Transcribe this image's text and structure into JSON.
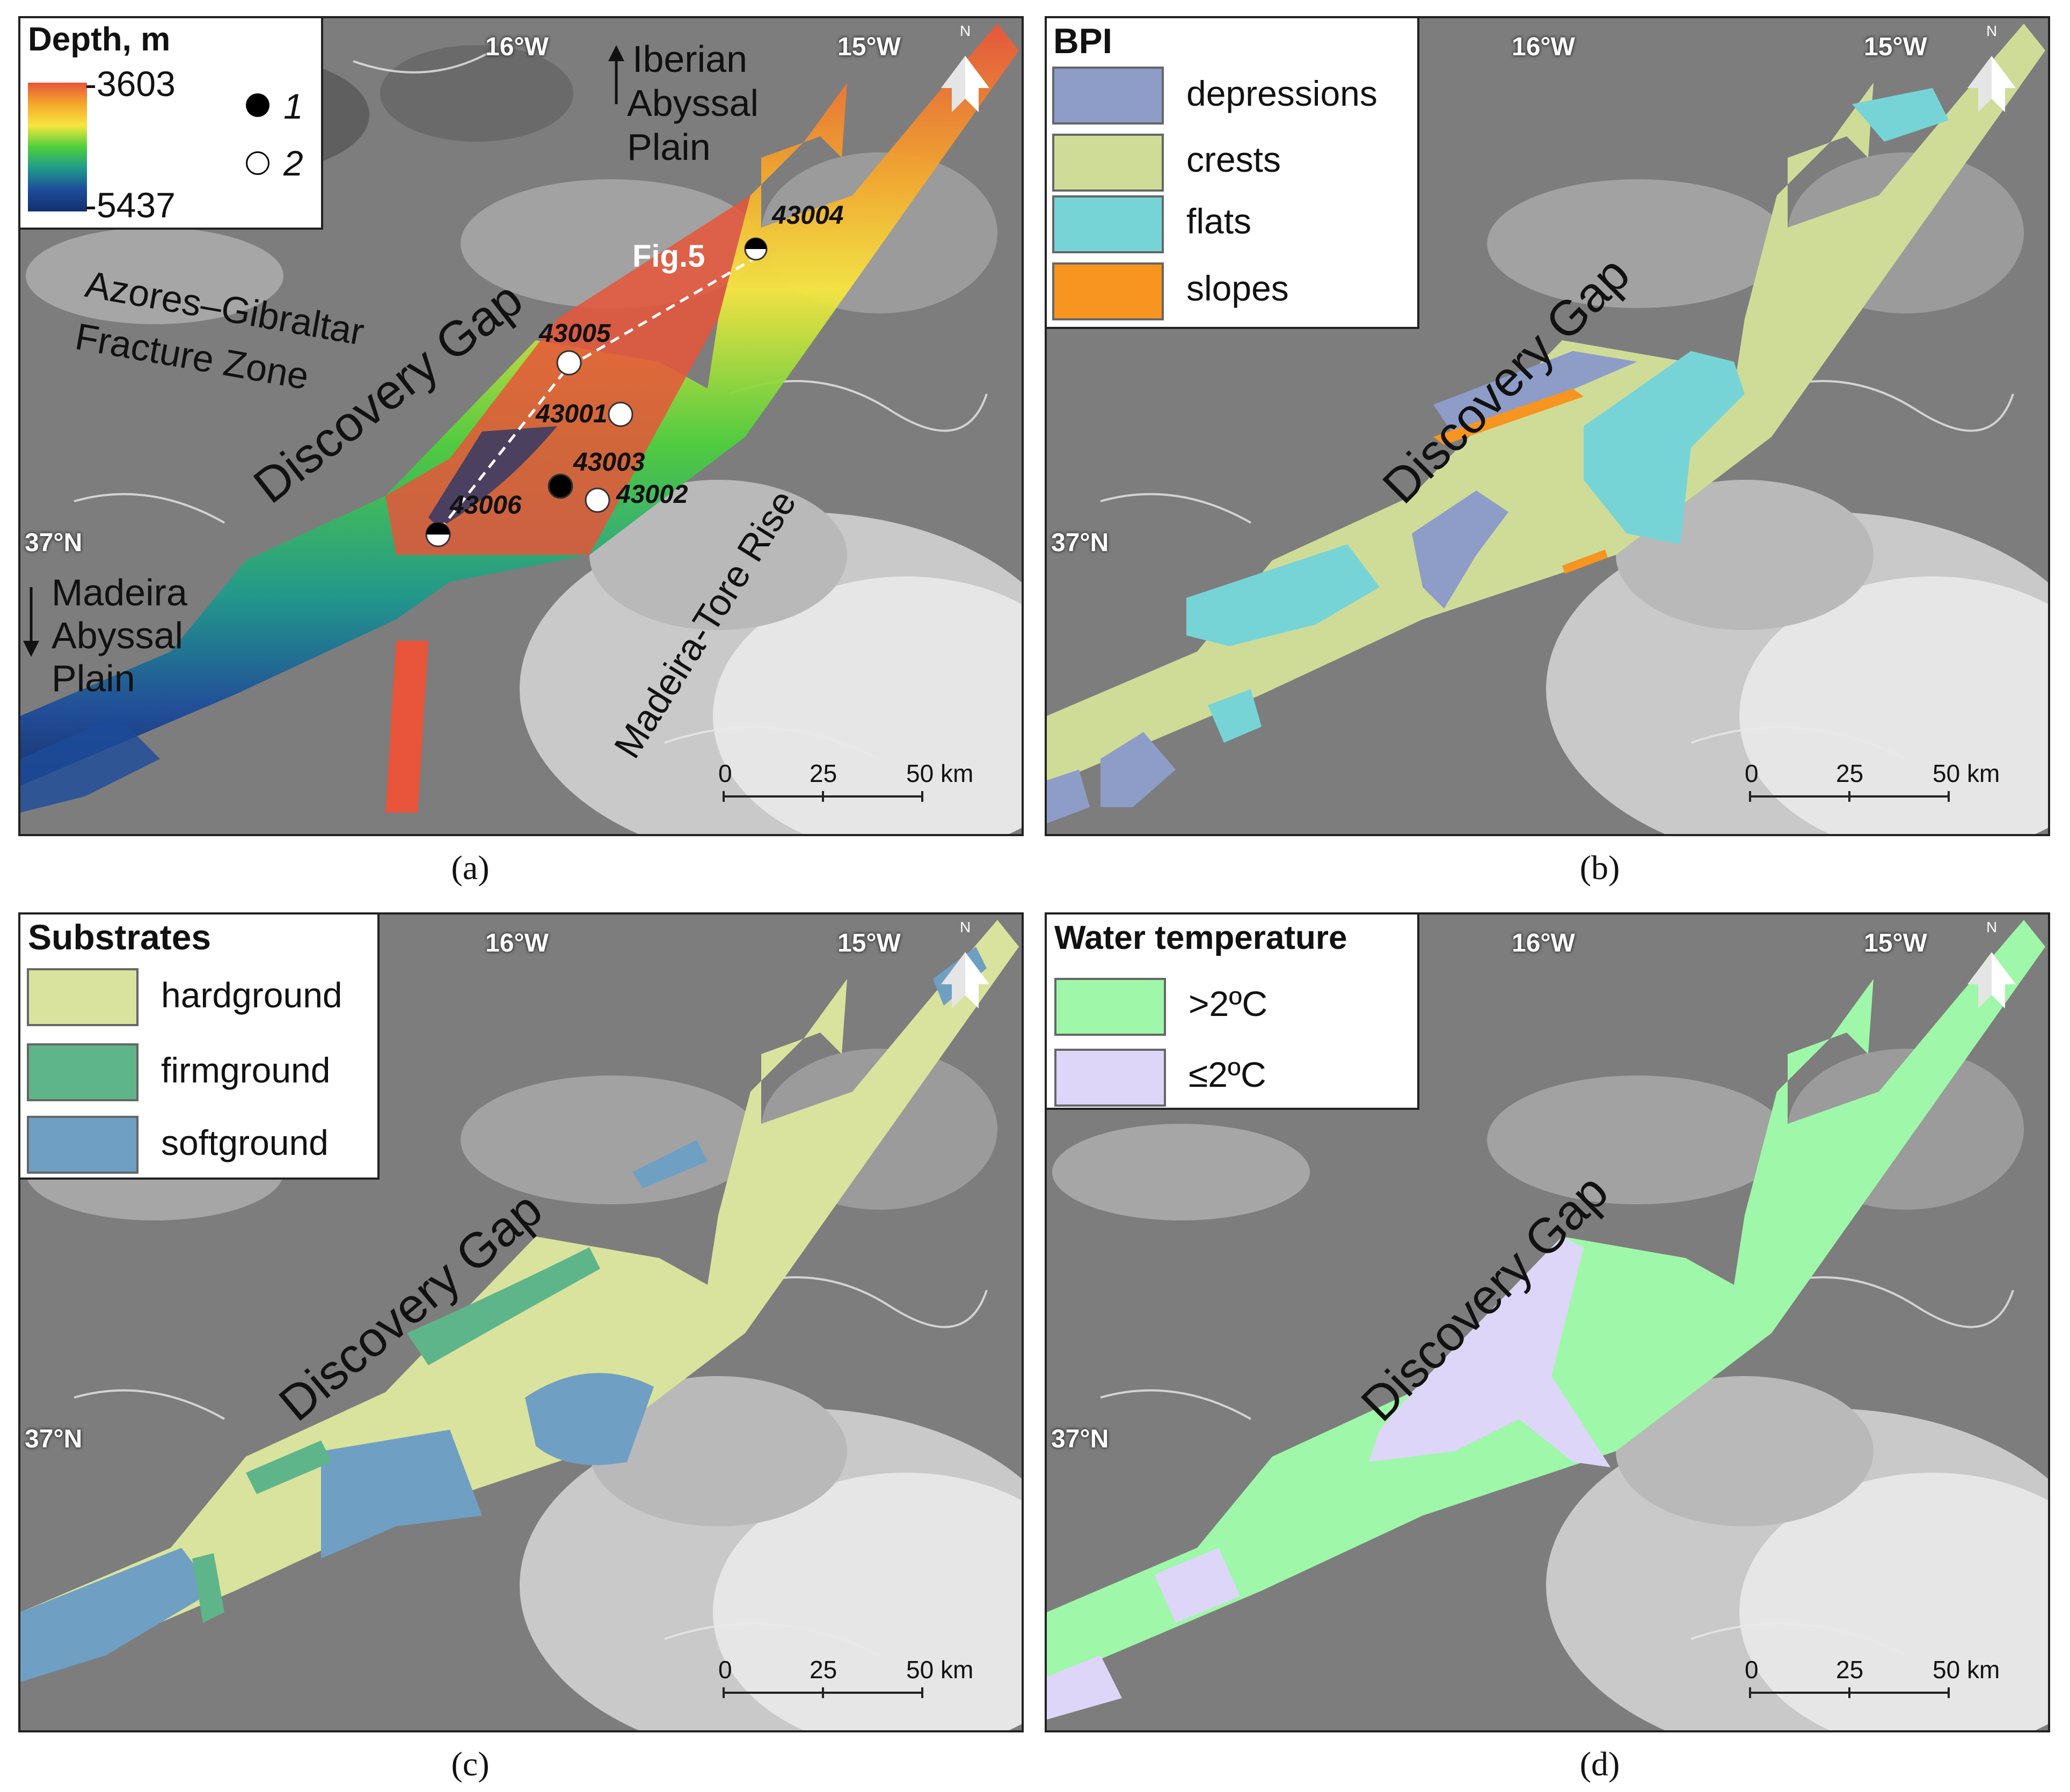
{
  "panels": {
    "a": {
      "caption": "(a)",
      "legend_title": "Depth, m",
      "depth_max": "-3603",
      "depth_min": "-5437",
      "marker_1": "1",
      "marker_2": "2",
      "gradient_colors": [
        "#e8553a",
        "#f4a82c",
        "#f6e640",
        "#4fcf3c",
        "#1e9a8c",
        "#1d4b9a",
        "#12306e"
      ],
      "labels": {
        "iberian": [
          "Iberian",
          "Abyssal",
          "Plain"
        ],
        "madeira": [
          "Madeira",
          "Abyssal",
          "Plain"
        ],
        "azores": [
          "Azores–Gibraltar",
          "Fracture Zone"
        ],
        "discovery": "Discovery Gap",
        "tore": "Madeira-Tore Rise",
        "fig5": "Fig.5"
      },
      "stations": [
        "43004",
        "43005",
        "43001",
        "43003",
        "43002",
        "43006"
      ]
    },
    "b": {
      "caption": "(b)",
      "legend_title": "BPI",
      "items": [
        {
          "label": "depressions",
          "color": "#8e9cc8"
        },
        {
          "label": "crests",
          "color": "#cfdc98"
        },
        {
          "label": "flats",
          "color": "#77d4d6"
        },
        {
          "label": "slopes",
          "color": "#f79520"
        }
      ],
      "discovery": "Discovery Gap"
    },
    "c": {
      "caption": "(c)",
      "legend_title": "Substrates",
      "items": [
        {
          "label": "hardground",
          "color": "#d9e39d"
        },
        {
          "label": "firmground",
          "color": "#5fb58a"
        },
        {
          "label": "softground",
          "color": "#6f9fc3"
        }
      ],
      "discovery": "Discovery Gap"
    },
    "d": {
      "caption": "(d)",
      "legend_title": "Water temperature",
      "items": [
        {
          "label": ">2ºC",
          "color": "#9ff7a9"
        },
        {
          "label": "≤2ºC",
          "color": "#ddd6f8"
        }
      ],
      "discovery": "Discovery Gap"
    }
  },
  "coords": {
    "lon1": "16°W",
    "lon2": "15°W",
    "lat": "37°N"
  },
  "scale": {
    "ticks": [
      "0",
      "25",
      "50 km"
    ]
  },
  "north_arrow": "N"
}
